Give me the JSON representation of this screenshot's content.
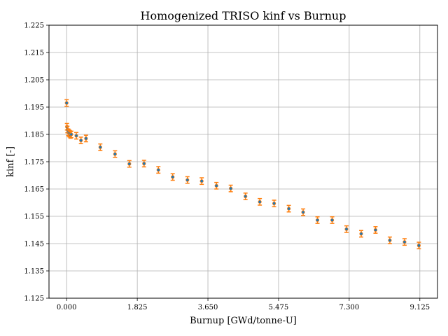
{
  "chart_data": {
    "type": "scatter",
    "title": "Homogenized TRISO kinf vs Burnup",
    "xlabel": "Burnup [GWd/tonne-U]",
    "ylabel": "kinf [-]",
    "xlim": [
      -0.456,
      9.581
    ],
    "ylim": [
      1.125,
      1.225
    ],
    "xticks": [
      "0.000",
      "1.825",
      "3.650",
      "5.475",
      "7.300",
      "9.125"
    ],
    "xtick_values": [
      0,
      1.825,
      3.65,
      5.475,
      7.3,
      9.125
    ],
    "yticks": [
      "1.125",
      "1.135",
      "1.145",
      "1.155",
      "1.165",
      "1.175",
      "1.185",
      "1.195",
      "1.205",
      "1.215",
      "1.225"
    ],
    "ytick_values": [
      1.125,
      1.135,
      1.145,
      1.155,
      1.165,
      1.175,
      1.185,
      1.195,
      1.205,
      1.215,
      1.225
    ],
    "grid": true,
    "colors": {
      "marker": "#1f77b4",
      "errorbar": "#ff7f0e",
      "grid": "#b0b0b0"
    },
    "series": [
      {
        "x": [
          0.0,
          0.008,
          0.02,
          0.04,
          0.06,
          0.08,
          0.1,
          0.12,
          0.25,
          0.37,
          0.5,
          0.87,
          1.25,
          1.62,
          2.0,
          2.37,
          2.74,
          3.12,
          3.49,
          3.87,
          4.24,
          4.62,
          4.99,
          5.36,
          5.74,
          6.11,
          6.48,
          6.86,
          7.23,
          7.61,
          7.98,
          8.35,
          8.73,
          9.1
        ],
        "y": [
          1.1965,
          1.1878,
          1.1868,
          1.1858,
          1.1855,
          1.1852,
          1.1848,
          1.185,
          1.1845,
          1.1828,
          1.1835,
          1.1803,
          1.1778,
          1.1742,
          1.1743,
          1.172,
          1.1694,
          1.1683,
          1.1679,
          1.1662,
          1.1652,
          1.1623,
          1.1603,
          1.1597,
          1.1578,
          1.1565,
          1.1536,
          1.1536,
          1.1503,
          1.1486,
          1.15,
          1.1462,
          1.1456,
          1.1443
        ],
        "err": [
          0.0012,
          0.0012,
          0.0012,
          0.0012,
          0.0012,
          0.0012,
          0.0012,
          0.0012,
          0.0012,
          0.0012,
          0.0012,
          0.0012,
          0.0012,
          0.0012,
          0.0012,
          0.0012,
          0.0012,
          0.0012,
          0.0012,
          0.0012,
          0.0012,
          0.0012,
          0.0012,
          0.0012,
          0.0012,
          0.0012,
          0.0012,
          0.0012,
          0.0012,
          0.0012,
          0.0012,
          0.0012,
          0.0012,
          0.0012
        ]
      }
    ]
  }
}
